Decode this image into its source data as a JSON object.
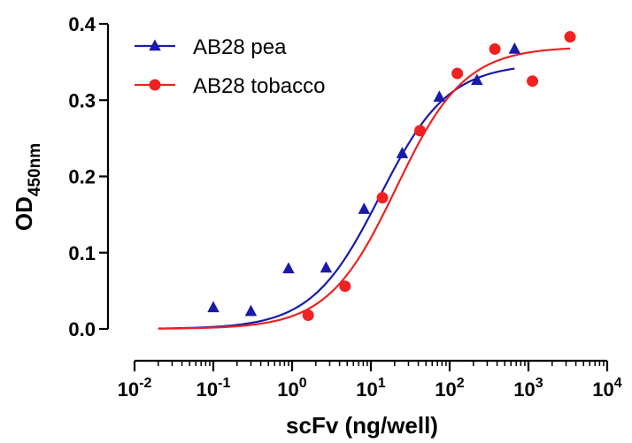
{
  "chart_data": {
    "type": "scatter",
    "xlabel": "scFv (ng/well)",
    "ylabel": "OD",
    "ylabel_sub": "450nm",
    "x_scale": "log",
    "xlim": [
      0.01,
      10000
    ],
    "ylim": [
      0,
      0.4
    ],
    "x_ticks": [
      {
        "value": 0.01,
        "base": "10",
        "exp": "-2"
      },
      {
        "value": 0.1,
        "base": "10",
        "exp": "-1"
      },
      {
        "value": 1,
        "base": "10",
        "exp": "0"
      },
      {
        "value": 10,
        "base": "10",
        "exp": "1"
      },
      {
        "value": 100,
        "base": "10",
        "exp": "2"
      },
      {
        "value": 1000,
        "base": "10",
        "exp": "3"
      },
      {
        "value": 10000,
        "base": "10",
        "exp": "4"
      }
    ],
    "y_ticks": [
      {
        "value": 0.0,
        "label": "0.0"
      },
      {
        "value": 0.1,
        "label": "0.1"
      },
      {
        "value": 0.2,
        "label": "0.2"
      },
      {
        "value": 0.3,
        "label": "0.3"
      },
      {
        "value": 0.4,
        "label": "0.4"
      }
    ],
    "grid": false,
    "legend_position": "top-left",
    "series": [
      {
        "name": "AB28 pea",
        "color": "#1a1aaa",
        "marker": "triangle",
        "x": [
          0.1,
          0.3,
          0.9,
          2.7,
          8.2,
          25,
          74,
          222,
          667
        ],
        "y": [
          0.028,
          0.023,
          0.079,
          0.08,
          0.157,
          0.23,
          0.304,
          0.326,
          0.367
        ],
        "fit": {
          "bottom": 0.0,
          "top": 0.348,
          "ec50": 13,
          "hill": 1.0,
          "x_range": [
            0.02,
            667
          ]
        }
      },
      {
        "name": "AB28 tobacco",
        "color": "#ee2222",
        "marker": "circle",
        "x": [
          1.6,
          4.7,
          14,
          42,
          125,
          375,
          1125,
          3375
        ],
        "y": [
          0.018,
          0.056,
          0.172,
          0.26,
          0.335,
          0.367,
          0.325,
          0.383
        ],
        "fit": {
          "bottom": 0.0,
          "top": 0.37,
          "ec50": 21,
          "hill": 1.0,
          "x_range": [
            0.02,
            3375
          ]
        }
      }
    ]
  }
}
